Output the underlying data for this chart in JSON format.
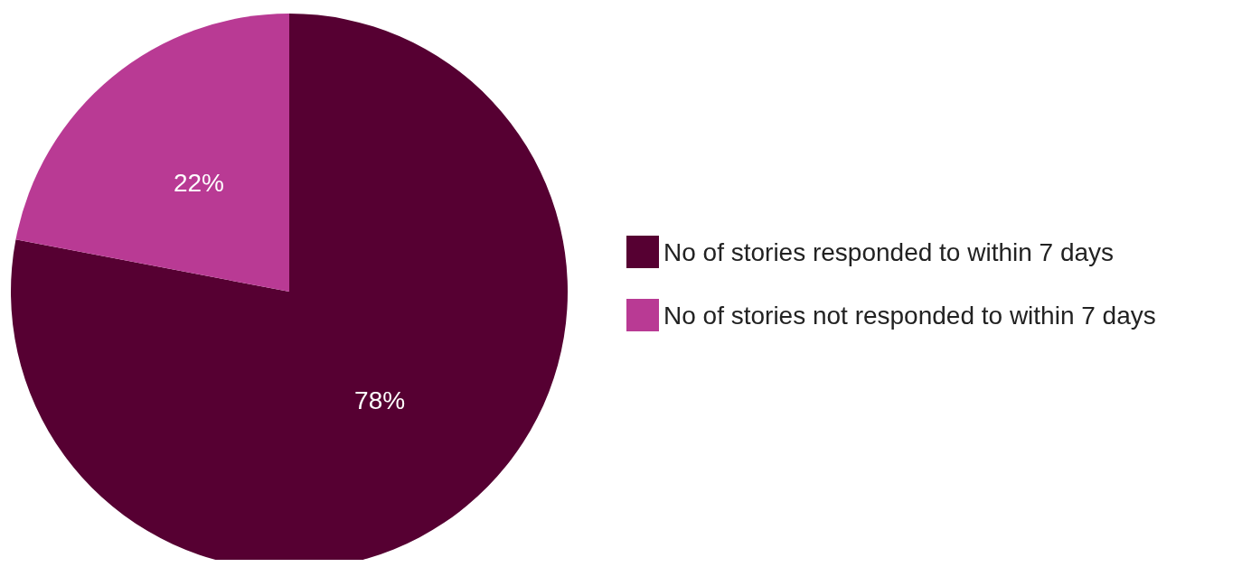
{
  "chart_data": {
    "type": "pie",
    "categories": [
      "No of stories responded to within 7 days",
      "No of stories not responded to within 7 days"
    ],
    "values": [
      78,
      22
    ],
    "colors": [
      "#560032",
      "#b93a94"
    ],
    "value_labels": [
      "78%",
      "22%"
    ],
    "legend": "right"
  }
}
